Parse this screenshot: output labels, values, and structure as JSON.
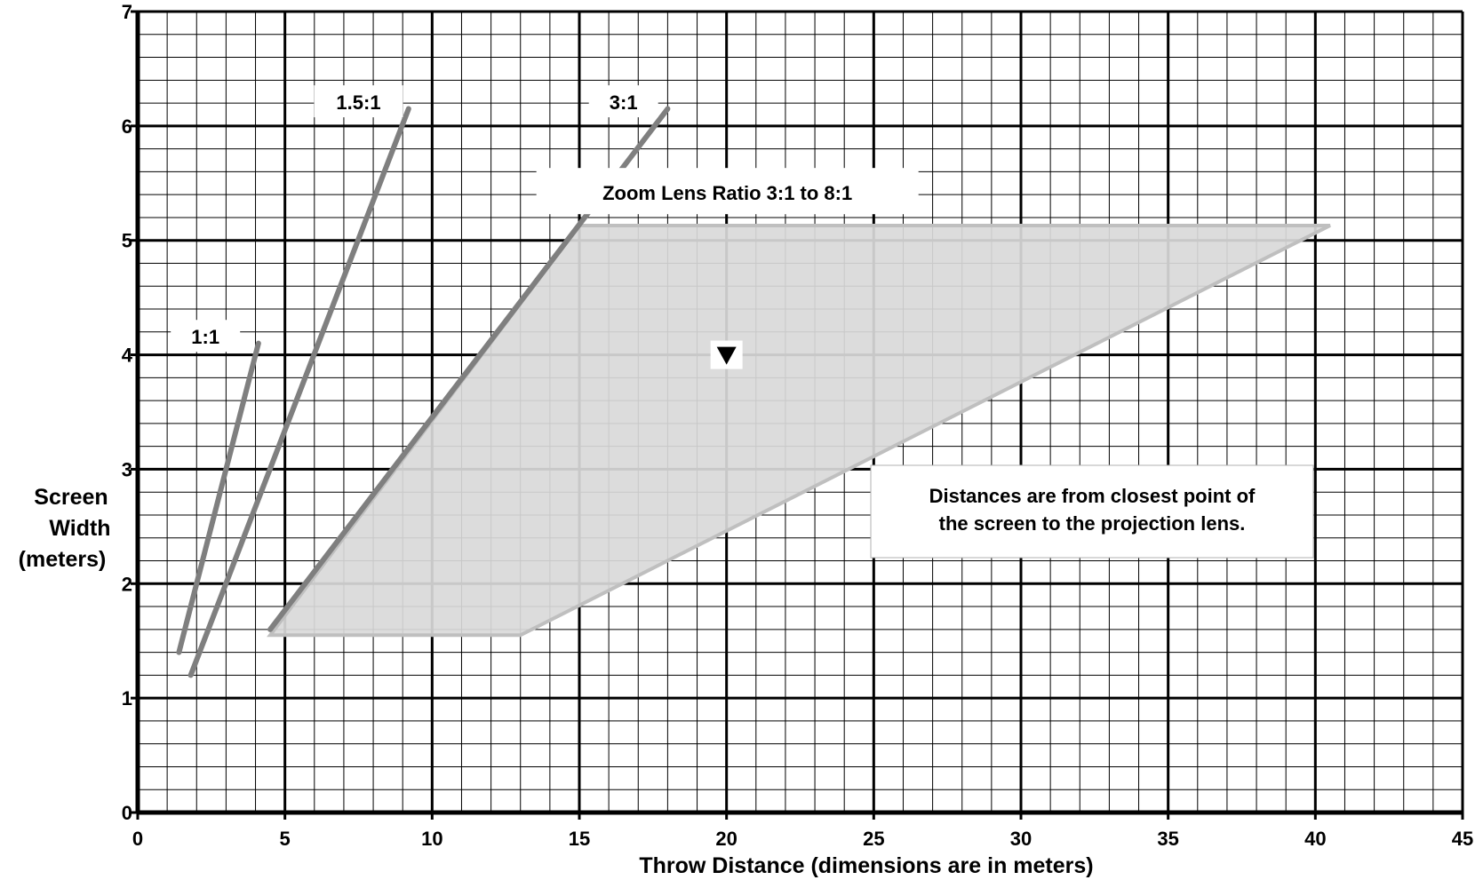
{
  "chart_data": {
    "type": "line",
    "xlabel": "Throw Distance  (dimensions are in meters)",
    "ylabel": [
      "Screen",
      "Width",
      "(meters)"
    ],
    "xlim": [
      0,
      45
    ],
    "ylim": [
      0,
      7
    ],
    "x_ticks": [
      0,
      5,
      10,
      15,
      20,
      25,
      30,
      35,
      40,
      45
    ],
    "y_ticks": [
      0,
      1,
      2,
      3,
      4,
      5,
      6,
      7
    ],
    "minor_x_step": 1,
    "minor_y_step": 0.2,
    "grid": true,
    "series": [
      {
        "name": "1:1",
        "x": [
          1.4,
          4.1
        ],
        "y": [
          1.4,
          4.1
        ],
        "color": "#7f7f7f"
      },
      {
        "name": "1.5:1",
        "x": [
          1.8,
          9.2
        ],
        "y": [
          1.2,
          6.15
        ],
        "color": "#7f7f7f"
      },
      {
        "name": "3:1",
        "x": [
          4.5,
          18.0
        ],
        "y": [
          1.6,
          6.15
        ],
        "color": "#7f7f7f"
      }
    ],
    "zoom_region": {
      "label": "Zoom Lens Ratio 3:1 to 8:1",
      "polygon_x": [
        4.5,
        13.0,
        40.5,
        15.0
      ],
      "polygon_y": [
        1.55,
        1.55,
        5.13,
        5.13
      ],
      "fill": "#d9d9d9",
      "edge": "#bfbfbf"
    },
    "marker": {
      "x": 20,
      "y": 4.0,
      "shape": "triangle-down"
    },
    "annotation": [
      "Distances are from closest point of",
      "the screen to the projection lens."
    ]
  }
}
